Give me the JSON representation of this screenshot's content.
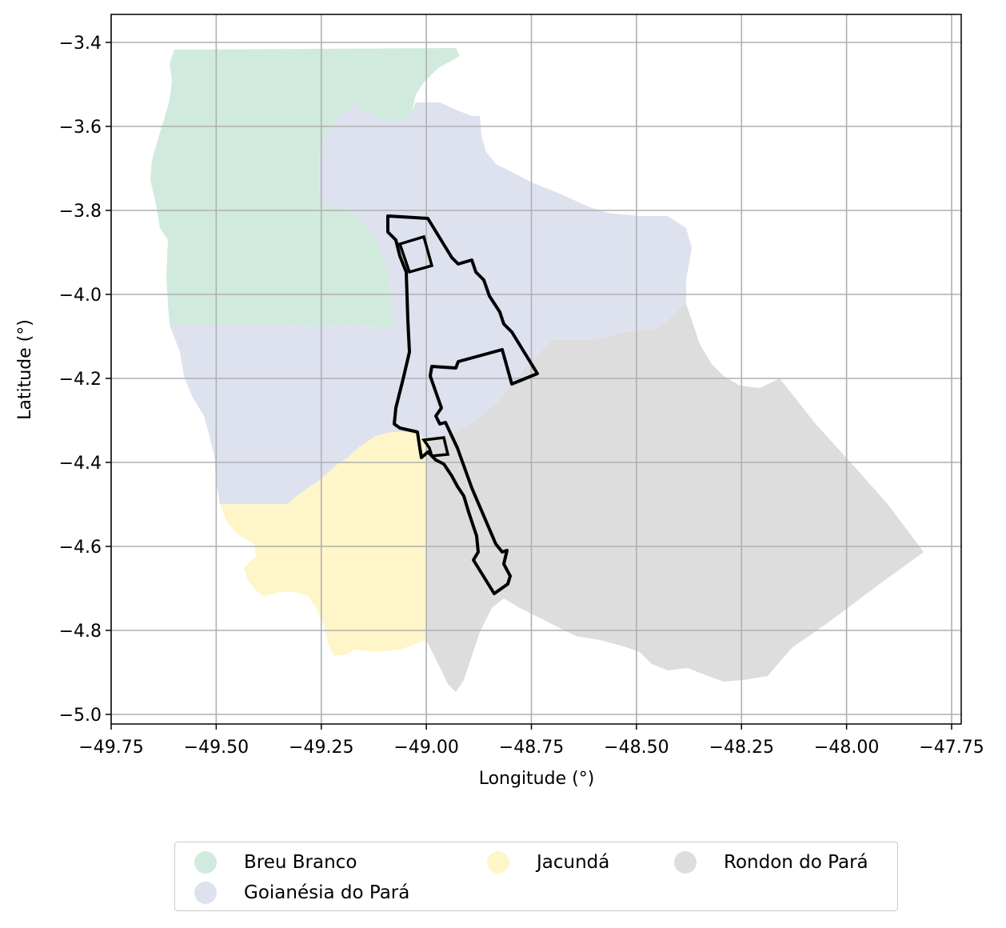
{
  "chart_data": {
    "type": "map",
    "xlabel": "Longitude (°)",
    "ylabel": "Latitude (°)",
    "xlim": [
      -49.75,
      -47.75
    ],
    "ylim": [
      -5.0,
      -3.4
    ],
    "x_ticks": [
      "−49.75",
      "−49.50",
      "−49.25",
      "−49.00",
      "−48.75",
      "−48.50",
      "−48.25",
      "−48.00",
      "−47.75"
    ],
    "y_ticks": [
      "−3.4",
      "−3.6",
      "−3.8",
      "−4.0",
      "−4.2",
      "−4.4",
      "−4.6",
      "−4.8",
      "−5.0"
    ],
    "grid": true,
    "legend_position": "bottom",
    "regions": [
      {
        "name": "Breu Branco",
        "color": "#d0ebdd"
      },
      {
        "name": "Goianésia do Pará",
        "color": "#dee2ef"
      },
      {
        "name": "Jacundá",
        "color": "#fef5c9"
      },
      {
        "name": "Rondon do Pará",
        "color": "#dddddd"
      }
    ],
    "outline_color": "#000000"
  }
}
